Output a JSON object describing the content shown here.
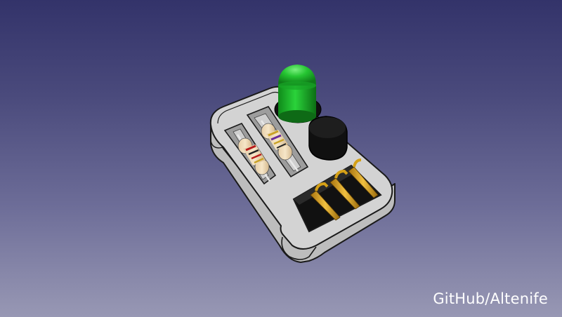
{
  "watermark": {
    "text": "GitHub/Altenife"
  },
  "colors": {
    "background_top": "#33336a",
    "background_bottom": "#9898b4",
    "enclosure": "#d3d3d3",
    "led": "#22c832",
    "buzzer": "#111111",
    "pins": "#d4a017"
  },
  "scene": {
    "objects": [
      "enclosure",
      "green-led",
      "buzzer",
      "resistor-1",
      "resistor-2",
      "header-pins"
    ]
  }
}
